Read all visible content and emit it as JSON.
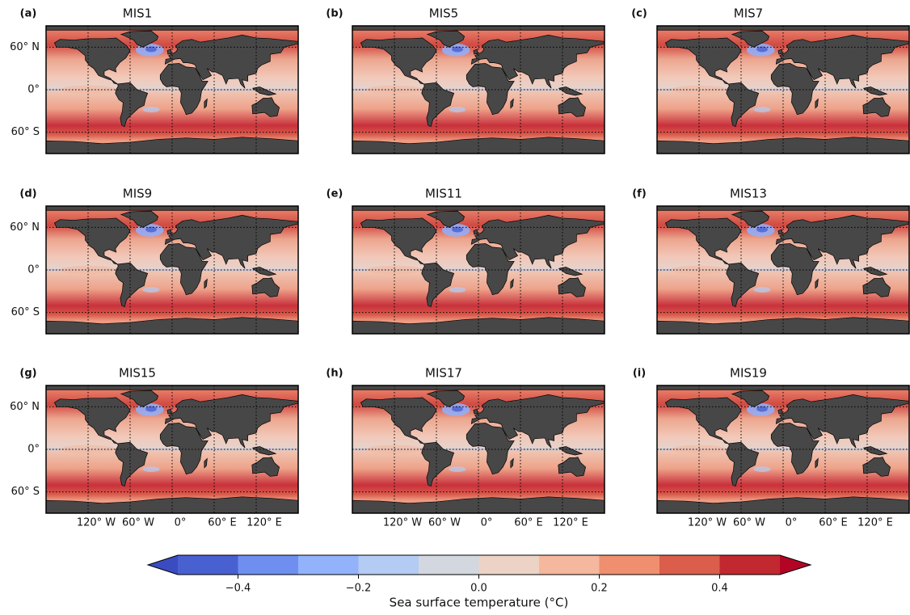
{
  "panels": [
    {
      "letter": "(a)",
      "title": "MIS1"
    },
    {
      "letter": "(b)",
      "title": "MIS5"
    },
    {
      "letter": "(c)",
      "title": "MIS7"
    },
    {
      "letter": "(d)",
      "title": "MIS9"
    },
    {
      "letter": "(e)",
      "title": "MIS11"
    },
    {
      "letter": "(f)",
      "title": "MIS13"
    },
    {
      "letter": "(g)",
      "title": "MIS15"
    },
    {
      "letter": "(h)",
      "title": "MIS17"
    },
    {
      "letter": "(i)",
      "title": "MIS19"
    }
  ],
  "map": {
    "lonlim": [
      -180,
      180
    ],
    "latlim": [
      -90,
      90
    ],
    "lat_ticks": [
      {
        "value": 60,
        "label": "60° N"
      },
      {
        "value": 0,
        "label": "0°"
      },
      {
        "value": -60,
        "label": "60° S"
      }
    ],
    "lon_ticks": [
      {
        "value": -120,
        "label": "120° W"
      },
      {
        "value": -60,
        "label": "60° W"
      },
      {
        "value": 0,
        "label": "0°"
      },
      {
        "value": 60,
        "label": "60° E"
      },
      {
        "value": 120,
        "label": "120° E"
      }
    ]
  },
  "colorbar": {
    "lim": [
      -0.5,
      0.5
    ],
    "ticks": [
      {
        "value": -0.4,
        "label": "−0.4"
      },
      {
        "value": -0.2,
        "label": "−0.2"
      },
      {
        "value": 0,
        "label": "0.0"
      },
      {
        "value": 0.2,
        "label": "0.2"
      },
      {
        "value": 0.4,
        "label": "0.4"
      }
    ],
    "colors": [
      "#4960d0",
      "#6e8ef0",
      "#93b2fc",
      "#b4cbf3",
      "#d2d7e0",
      "#ecd3c5",
      "#f5b79d",
      "#ef8f6f",
      "#db5d4b",
      "#c1282f"
    ],
    "under_color": "#3b4cc0",
    "over_color": "#b40426",
    "label": "Sea surface temperature (°C)"
  }
}
